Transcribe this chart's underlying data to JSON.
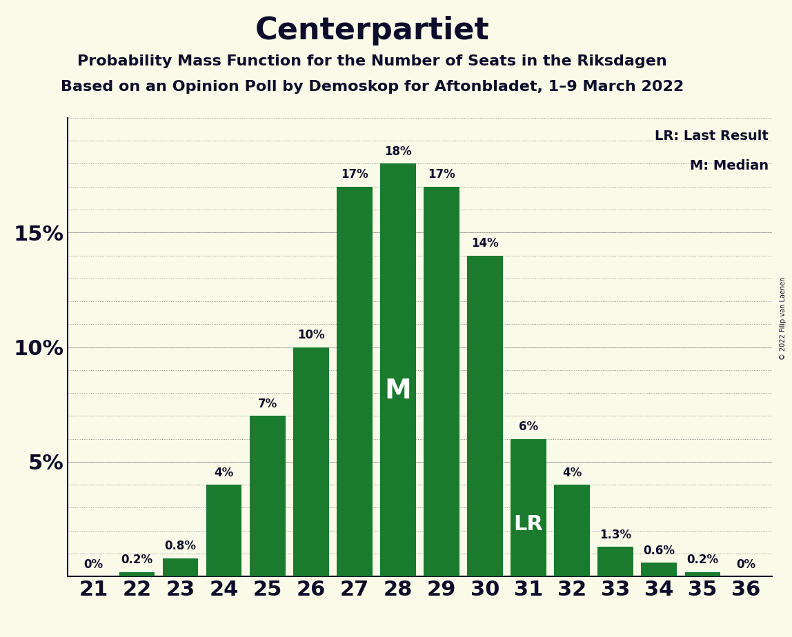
{
  "title": "Centerpartiet",
  "subtitle1": "Probability Mass Function for the Number of Seats in the Riksdagen",
  "subtitle2": "Based on an Opinion Poll by Demoskop for Aftonbladet, 1–9 March 2022",
  "copyright": "© 2022 Filip van Laenen",
  "legend_lr": "LR: Last Result",
  "legend_m": "M: Median",
  "categories": [
    21,
    22,
    23,
    24,
    25,
    26,
    27,
    28,
    29,
    30,
    31,
    32,
    33,
    34,
    35,
    36
  ],
  "values": [
    0.0,
    0.2,
    0.8,
    4.0,
    7.0,
    10.0,
    17.0,
    18.0,
    17.0,
    14.0,
    6.0,
    4.0,
    1.3,
    0.6,
    0.2,
    0.0
  ],
  "labels": [
    "0%",
    "0.2%",
    "0.8%",
    "4%",
    "7%",
    "10%",
    "17%",
    "18%",
    "17%",
    "14%",
    "6%",
    "4%",
    "1.3%",
    "0.6%",
    "0.2%",
    "0%"
  ],
  "bar_color": "#1a7a2e",
  "background_color": "#fafae8",
  "text_color": "#0d0d2b",
  "median_seat": 28,
  "lr_seat": 31,
  "ylim": [
    0,
    20
  ],
  "title_fontsize": 32,
  "subtitle_fontsize": 16,
  "label_fontsize": 12,
  "axis_fontsize": 22,
  "legend_fontsize": 14,
  "grid_interval": 1.0,
  "grid_color": "#888888",
  "grid_linewidth": 0.7
}
